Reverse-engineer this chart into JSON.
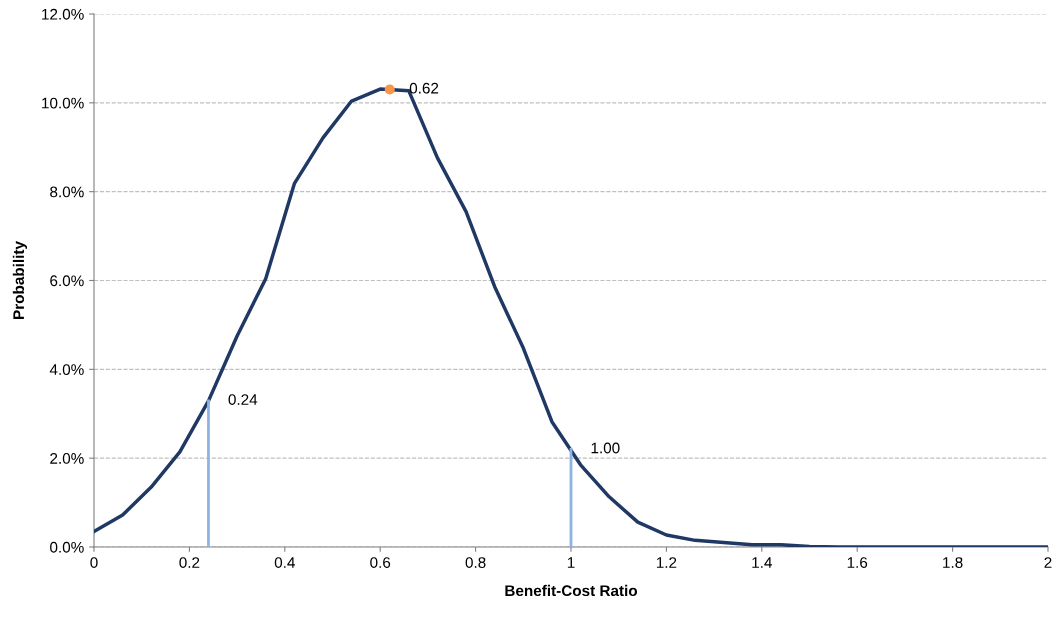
{
  "chart_data": {
    "type": "line",
    "xlabel": "Benefit-Cost Ratio",
    "ylabel": "Probability",
    "series": [
      {
        "color": "#1f3864",
        "x": [
          0,
          0.06,
          0.12,
          0.18,
          0.24,
          0.3,
          0.36,
          0.42,
          0.48,
          0.54,
          0.6,
          0.66,
          0.72,
          0.78,
          0.84,
          0.9,
          0.96,
          1.02,
          1.08,
          1.14,
          1.2,
          1.26,
          1.32,
          1.38,
          1.44,
          1.5,
          1.56,
          1.62,
          1.68,
          1.74,
          1.8,
          1.86,
          1.92,
          1.98,
          2.0
        ],
        "values": [
          0.35,
          0.72,
          1.35,
          2.14,
          3.29,
          4.75,
          6.04,
          8.18,
          9.21,
          10.04,
          10.31,
          10.27,
          8.76,
          7.55,
          5.86,
          4.48,
          2.82,
          1.85,
          1.13,
          0.56,
          0.27,
          0.15,
          0.1,
          0.05,
          0.05,
          0.01,
          0,
          0,
          0,
          0,
          0,
          0,
          0,
          0,
          0
        ]
      },
      {
        "color": "#8db3e2",
        "x": [
          0.24,
          0.24
        ],
        "values": [
          0,
          3.29
        ]
      },
      {
        "color": "#8db3e2",
        "x": [
          1.0,
          1.0
        ],
        "values": [
          0,
          2.2
        ]
      },
      {
        "type": "scatter",
        "color": "#f79646",
        "x": [
          0.62
        ],
        "values": [
          10.3
        ]
      }
    ],
    "annotations": [
      {
        "text": "0.24",
        "x": 0.24,
        "y": 3.29
      },
      {
        "text": "1.00",
        "x": 1.0,
        "y": 2.2
      },
      {
        "text": "0.62",
        "x": 0.62,
        "y": 10.3
      }
    ],
    "xlim": [
      0,
      2
    ],
    "xticks": [
      0,
      0.2,
      0.4,
      0.6,
      0.8,
      1,
      1.2,
      1.4,
      1.6,
      1.8,
      2
    ],
    "ylim": [
      0,
      12
    ],
    "yticks": [
      {
        "value": 0,
        "label": "0.0%"
      },
      {
        "value": 2,
        "label": "2.0%"
      },
      {
        "value": 4,
        "label": "4.0%"
      },
      {
        "value": 6,
        "label": "6.0%"
      },
      {
        "value": 8,
        "label": "8.0%"
      },
      {
        "value": 10,
        "label": "10.0%"
      },
      {
        "value": 12,
        "label": "12.0%"
      }
    ],
    "grid": "y"
  }
}
